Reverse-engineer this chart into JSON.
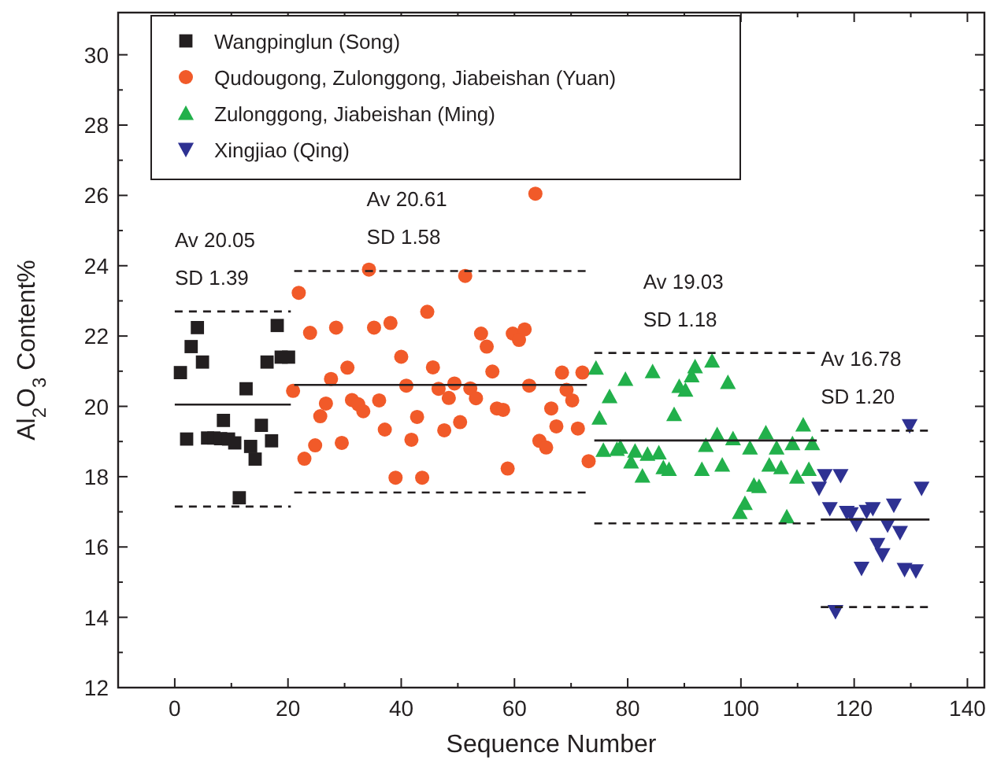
{
  "chart_data": {
    "type": "scatter",
    "xlabel": "Sequence Number",
    "ylabel": "Al$_{2}$O$_{3}$ Content%",
    "xlim": [
      -10,
      143
    ],
    "ylim": [
      12,
      31.2
    ],
    "xticks": [
      0,
      {
        "value": 10,
        "label": null
      },
      20,
      {
        "value": 30,
        "label": null
      },
      40,
      {
        "value": 50,
        "label": null
      },
      60,
      {
        "value": 70,
        "label": null
      },
      80,
      {
        "value": 90,
        "label": null
      },
      100,
      {
        "value": 110,
        "label": null
      },
      120,
      {
        "value": 130,
        "label": null
      },
      140
    ],
    "yticks": [
      12,
      {
        "value": 13,
        "label": null
      },
      14,
      {
        "value": 15,
        "label": null
      },
      16,
      {
        "value": 17,
        "label": null
      },
      18,
      {
        "value": 19,
        "label": null
      },
      20,
      {
        "value": 21,
        "label": null
      },
      22,
      {
        "value": 23,
        "label": null
      },
      24,
      {
        "value": 25,
        "label": null
      },
      26,
      {
        "value": 27,
        "label": null
      },
      28,
      {
        "value": 29,
        "label": null
      },
      30
    ],
    "grid": false,
    "legend": "top",
    "series": [
      {
        "name": "Wangpinglun (Song)",
        "color": "#231f20",
        "marker": "square",
        "x": [
          4.0,
          18.1,
          2.9,
          4.9,
          1.0,
          16.3,
          18.8,
          20.1,
          12.6,
          8.6,
          2.1,
          5.8,
          6.9,
          8.1,
          9.5,
          10.6,
          13.4,
          15.3,
          17.1,
          14.2,
          11.4
        ],
        "values": [
          22.24,
          22.3,
          21.7,
          21.26,
          20.96,
          21.26,
          21.4,
          21.4,
          20.5,
          19.6,
          19.07,
          19.1,
          19.1,
          19.08,
          19.07,
          18.96,
          18.86,
          19.46,
          19.02,
          18.5,
          17.4
        ]
      },
      {
        "name": "Qudougong, Zulonggong, Jiabeishan (Yuan)",
        "color": "#f15a29",
        "marker": "circle",
        "x": [
          63.7,
          34.3,
          51.3,
          21.9,
          44.6,
          23.9,
          28.5,
          35.2,
          38.1,
          54.1,
          59.7,
          61.8,
          60.8,
          55.1,
          40.0,
          30.5,
          45.6,
          56.1,
          68.4,
          72.0,
          27.6,
          20.9,
          40.9,
          49.4,
          46.6,
          52.2,
          62.6,
          69.2,
          26.7,
          31.3,
          32.4,
          33.3,
          36.1,
          48.4,
          53.2,
          70.2,
          56.9,
          58.0,
          66.5,
          25.7,
          42.8,
          50.4,
          37.1,
          47.6,
          67.4,
          71.2,
          41.8,
          64.4,
          65.6,
          24.8,
          29.5,
          22.9,
          73.1,
          58.8,
          39.0,
          43.7
        ],
        "values": [
          26.05,
          23.89,
          23.71,
          23.23,
          22.69,
          22.09,
          22.24,
          22.24,
          22.37,
          22.07,
          22.07,
          22.19,
          21.89,
          21.7,
          21.41,
          21.1,
          21.11,
          20.99,
          20.96,
          20.96,
          20.78,
          20.44,
          20.59,
          20.65,
          20.5,
          20.51,
          20.59,
          20.47,
          20.08,
          20.18,
          20.06,
          19.86,
          20.17,
          20.24,
          20.23,
          20.17,
          19.94,
          19.9,
          19.94,
          19.72,
          19.7,
          19.55,
          19.34,
          19.32,
          19.43,
          19.37,
          19.05,
          19.02,
          18.83,
          18.89,
          18.96,
          18.51,
          18.44,
          18.23,
          17.97,
          17.97
        ]
      },
      {
        "name": "Zulonggong, Jiabeishan (Ming)",
        "color": "#22b04b",
        "marker": "triangle",
        "x": [
          74.4,
          79.6,
          84.4,
          91.9,
          91.3,
          89.1,
          90.2,
          94.9,
          97.7,
          76.8,
          75.0,
          88.2,
          75.7,
          78.1,
          78.7,
          81.3,
          83.5,
          85.5,
          80.6,
          82.6,
          86.3,
          87.3,
          93.1,
          95.8,
          98.6,
          93.8,
          96.7,
          101.6,
          104.4,
          106.3,
          109.1,
          111.0,
          112.6,
          105.0,
          107.1,
          112.0,
          109.9,
          102.3,
          103.2,
          100.7,
          99.8,
          108.1
        ],
        "values": [
          21.09,
          20.77,
          20.99,
          21.13,
          20.87,
          20.57,
          20.46,
          21.29,
          20.68,
          20.28,
          19.67,
          19.77,
          18.75,
          18.78,
          18.84,
          18.73,
          18.64,
          18.68,
          18.42,
          18.02,
          18.26,
          18.21,
          18.21,
          19.2,
          19.08,
          18.89,
          18.33,
          18.82,
          19.25,
          18.82,
          18.94,
          19.47,
          18.94,
          18.33,
          18.26,
          18.21,
          17.99,
          17.76,
          17.72,
          17.24,
          16.98,
          16.86
        ]
      },
      {
        "name": "Xingjiao (Qing)",
        "color": "#2e3192",
        "marker": "triangle-down",
        "x": [
          129.8,
          114.8,
          117.6,
          113.8,
          131.9,
          115.7,
          118.7,
          119.4,
          122.2,
          123.3,
          127.0,
          120.4,
          125.9,
          128.1,
          124.1,
          125.0,
          121.3,
          128.9,
          130.9,
          116.7
        ],
        "values": [
          19.45,
          18.03,
          18.03,
          17.67,
          17.67,
          17.09,
          16.98,
          16.94,
          17.01,
          17.09,
          17.19,
          16.64,
          16.62,
          16.41,
          16.07,
          15.78,
          15.39,
          15.36,
          15.32,
          14.16
        ]
      },
      {
        "type": "line",
        "color": "#231f20",
        "line_style": "solid",
        "x": [
          0,
          20.5
        ],
        "values": [
          20.05,
          20.05
        ]
      },
      {
        "type": "line",
        "color": "#231f20",
        "line_style": "dashed",
        "x": [
          0,
          20.5
        ],
        "values": [
          22.7,
          22.7
        ]
      },
      {
        "type": "line",
        "color": "#231f20",
        "line_style": "dashed",
        "x": [
          0,
          20.5
        ],
        "values": [
          17.15,
          17.15
        ]
      },
      {
        "type": "line",
        "color": "#231f20",
        "line_style": "solid",
        "x": [
          21.1,
          72.8
        ],
        "values": [
          20.61,
          20.61
        ]
      },
      {
        "type": "line",
        "color": "#231f20",
        "line_style": "dashed",
        "x": [
          21.1,
          72.8
        ],
        "values": [
          23.85,
          23.85
        ]
      },
      {
        "type": "line",
        "color": "#231f20",
        "line_style": "dashed",
        "x": [
          21.1,
          72.8
        ],
        "values": [
          17.55,
          17.55
        ]
      },
      {
        "type": "line",
        "color": "#231f20",
        "line_style": "solid",
        "x": [
          74.1,
          113.4
        ],
        "values": [
          19.03,
          19.03
        ]
      },
      {
        "type": "line",
        "color": "#231f20",
        "line_style": "dashed",
        "x": [
          74.1,
          113.4
        ],
        "values": [
          21.52,
          21.52
        ]
      },
      {
        "type": "line",
        "color": "#231f20",
        "line_style": "dashed",
        "x": [
          74.1,
          113.4
        ],
        "values": [
          16.67,
          16.67
        ]
      },
      {
        "type": "line",
        "color": "#231f20",
        "line_style": "solid",
        "x": [
          114.1,
          133.3
        ],
        "values": [
          16.78,
          16.78
        ]
      },
      {
        "type": "line",
        "color": "#231f20",
        "line_style": "dashed",
        "x": [
          114.1,
          133.3
        ],
        "values": [
          19.31,
          19.31
        ]
      },
      {
        "type": "line",
        "color": "#231f20",
        "line_style": "dashed",
        "x": [
          114.1,
          133.3
        ],
        "values": [
          14.29,
          14.29
        ]
      }
    ],
    "annotations": [
      "Av 20.05",
      "SD 1.39",
      "Av 20.61",
      "SD 1.58",
      "Av 19.03",
      "SD 1.18",
      "Av 16.78",
      "SD 1.20"
    ]
  }
}
